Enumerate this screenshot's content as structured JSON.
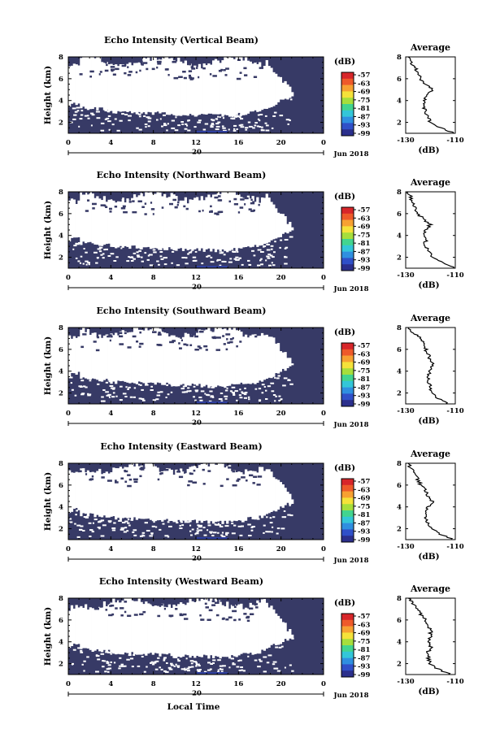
{
  "chart_data": [
    {
      "type": "heatmap",
      "title": "Echo Intensity (Vertical Beam)",
      "ylabel": "Height (km)",
      "yticks": [
        "2",
        "4",
        "6",
        "8"
      ],
      "xticks": [
        "0",
        "4",
        "8",
        "12",
        "16",
        "20",
        "0"
      ],
      "date_tick": "20",
      "date_label": "Jun 2018",
      "ylim": [
        1,
        8
      ],
      "xlim": [
        0,
        24
      ],
      "colorbar": {
        "unit": "(dB)",
        "ticks": [
          "-57",
          "-63",
          "-69",
          "-75",
          "-81",
          "-87",
          "-93",
          "-99"
        ]
      },
      "average": {
        "title": "Average",
        "xlabel": "(dB)",
        "xticks": [
          "-130",
          "-110"
        ],
        "yticks": [
          "2",
          "4",
          "6",
          "8"
        ],
        "xlim": [
          -130,
          -110
        ],
        "height": [
          1.0,
          1.5,
          2.0,
          2.5,
          3.0,
          3.5,
          4.0,
          4.5,
          5.0,
          5.5,
          6.0,
          6.5,
          7.0,
          7.5,
          8.0
        ],
        "intensity": [
          -110,
          -116,
          -120,
          -121,
          -122,
          -123,
          -123,
          -121,
          -119,
          -122,
          -124,
          -125,
          -126,
          -128,
          -129
        ]
      },
      "cloud": {
        "top_height": [
          6.8,
          7.4,
          7.6,
          7.6,
          7.4,
          7.2,
          7.0,
          7.2,
          7.6,
          7.8,
          7.6,
          6.6,
          4.6
        ],
        "top_time": [
          0,
          2,
          4,
          6,
          8,
          10,
          12,
          14,
          16,
          18,
          19,
          20,
          21
        ]
      }
    },
    {
      "type": "heatmap",
      "title": "Echo Intensity (Northward Beam)",
      "ylabel": "Height (km)",
      "yticks": [
        "2",
        "4",
        "6",
        "8"
      ],
      "xticks": [
        "0",
        "4",
        "8",
        "12",
        "16",
        "20",
        "0"
      ],
      "date_tick": "20",
      "date_label": "Jun 2018",
      "ylim": [
        1,
        8
      ],
      "xlim": [
        0,
        24
      ],
      "colorbar": {
        "unit": "(dB)",
        "ticks": [
          "-57",
          "-63",
          "-69",
          "-75",
          "-81",
          "-87",
          "-93",
          "-99"
        ]
      },
      "average": {
        "title": "Average",
        "xlabel": "(dB)",
        "xticks": [
          "-130",
          "-110"
        ],
        "yticks": [
          "2",
          "4",
          "6",
          "8"
        ],
        "xlim": [
          -130,
          -110
        ],
        "height": [
          1.0,
          1.5,
          2.0,
          2.5,
          3.0,
          3.5,
          4.0,
          4.5,
          5.0,
          5.5,
          6.0,
          6.5,
          7.0,
          7.5,
          8.0
        ],
        "intensity": [
          -110,
          -115,
          -119,
          -121,
          -122,
          -122,
          -123,
          -122,
          -120,
          -123,
          -125,
          -126,
          -127,
          -128,
          -129
        ]
      }
    },
    {
      "type": "heatmap",
      "title": "Echo Intensity (Southward Beam)",
      "ylabel": "Height (km)",
      "yticks": [
        "2",
        "4",
        "6",
        "8"
      ],
      "xticks": [
        "0",
        "4",
        "8",
        "12",
        "16",
        "20",
        "0"
      ],
      "date_tick": "20",
      "date_label": "Jun 2018",
      "ylim": [
        1,
        8
      ],
      "xlim": [
        0,
        24
      ],
      "colorbar": {
        "unit": "(dB)",
        "ticks": [
          "-57",
          "-63",
          "-69",
          "-75",
          "-81",
          "-87",
          "-93",
          "-99"
        ]
      },
      "average": {
        "title": "Average",
        "xlabel": "(dB)",
        "xticks": [
          "-130",
          "-110"
        ],
        "yticks": [
          "2",
          "4",
          "6",
          "8"
        ],
        "xlim": [
          -130,
          -110
        ],
        "height": [
          1.0,
          1.5,
          2.0,
          2.5,
          3.0,
          3.5,
          4.0,
          4.5,
          5.0,
          5.5,
          6.0,
          6.5,
          7.0,
          7.5,
          8.0
        ],
        "intensity": [
          -113,
          -117,
          -119,
          -120,
          -121,
          -121,
          -120,
          -119,
          -120,
          -121,
          -122,
          -123,
          -124,
          -127,
          -129
        ]
      }
    },
    {
      "type": "heatmap",
      "title": "Echo Intensity (Eastward Beam)",
      "ylabel": "Height (km)",
      "yticks": [
        "2",
        "4",
        "6",
        "8"
      ],
      "xticks": [
        "0",
        "4",
        "8",
        "12",
        "16",
        "20",
        "0"
      ],
      "date_tick": "20",
      "date_label": "Jun 2018",
      "ylim": [
        1,
        8
      ],
      "xlim": [
        0,
        24
      ],
      "colorbar": {
        "unit": "(dB)",
        "ticks": [
          "-57",
          "-63",
          "-69",
          "-75",
          "-81",
          "-87",
          "-93",
          "-99"
        ]
      },
      "average": {
        "title": "Average",
        "xlabel": "(dB)",
        "xticks": [
          "-130",
          "-110"
        ],
        "yticks": [
          "2",
          "4",
          "6",
          "8"
        ],
        "xlim": [
          -130,
          -110
        ],
        "height": [
          1.0,
          1.5,
          2.0,
          2.5,
          3.0,
          3.5,
          4.0,
          4.5,
          5.0,
          5.5,
          6.0,
          6.5,
          7.0,
          7.5,
          8.0
        ],
        "intensity": [
          -111,
          -116,
          -119,
          -121,
          -122,
          -122,
          -121,
          -119,
          -121,
          -122,
          -124,
          -125,
          -126,
          -128,
          -129
        ]
      }
    },
    {
      "type": "heatmap",
      "title": "Echo Intensity (Westward Beam)",
      "ylabel": "Height (km)",
      "yticks": [
        "2",
        "4",
        "6",
        "8"
      ],
      "xticks": [
        "0",
        "4",
        "8",
        "12",
        "16",
        "20",
        "0"
      ],
      "date_tick": "20",
      "date_label": "Jun 2018",
      "ylim": [
        1,
        8
      ],
      "xlim": [
        0,
        24
      ],
      "xlabel": "Local Time",
      "colorbar": {
        "unit": "(dB)",
        "ticks": [
          "-57",
          "-63",
          "-69",
          "-75",
          "-81",
          "-87",
          "-93",
          "-99"
        ]
      },
      "average": {
        "title": "Average",
        "xlabel": "(dB)",
        "xticks": [
          "-130",
          "-110"
        ],
        "yticks": [
          "2",
          "4",
          "6",
          "8"
        ],
        "xlim": [
          -130,
          -110
        ],
        "height": [
          1.0,
          1.5,
          2.0,
          2.5,
          3.0,
          3.5,
          4.0,
          4.5,
          5.0,
          5.5,
          6.0,
          6.5,
          7.0,
          7.5,
          8.0
        ],
        "intensity": [
          -112,
          -117,
          -120,
          -121,
          -121,
          -120,
          -121,
          -120,
          -120,
          -121,
          -122,
          -124,
          -125,
          -127,
          -129
        ]
      }
    }
  ],
  "colors": {
    "background_echo": "#373a66",
    "colorbar": [
      "#2b2f8c",
      "#3050c8",
      "#2f8fe0",
      "#33c6d8",
      "#42d48f",
      "#a6de3c",
      "#f5e23a",
      "#f7a132",
      "#ee5a2a",
      "#d7262a"
    ]
  }
}
